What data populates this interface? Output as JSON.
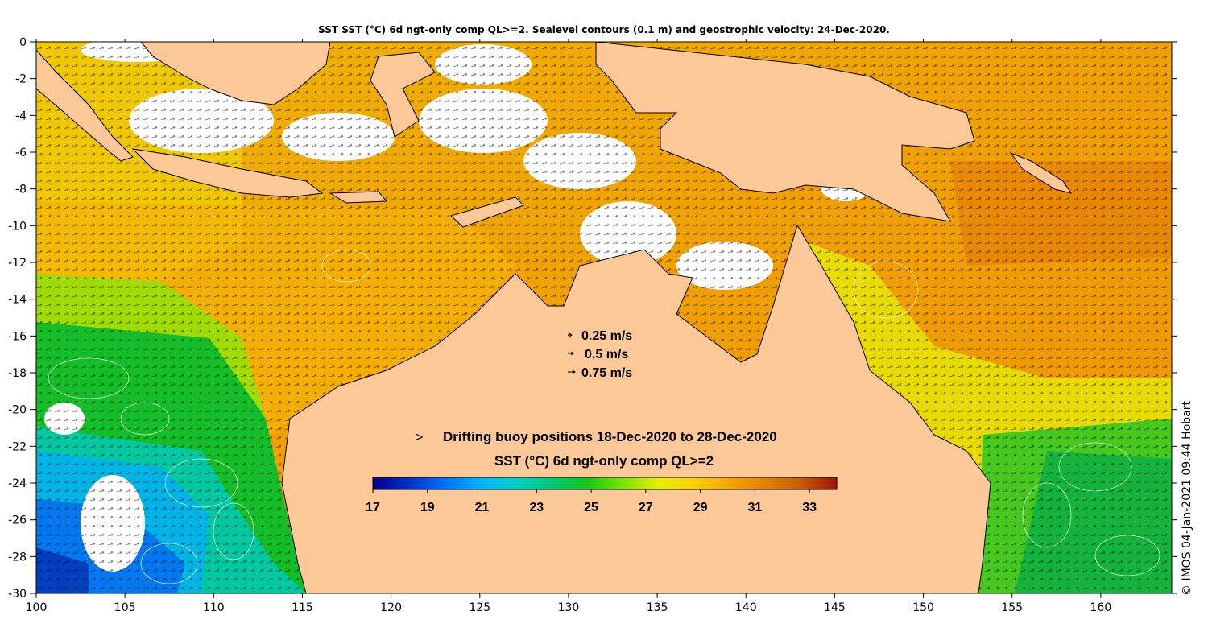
{
  "title": "SST SST (°C) 6d ngt-only comp QL>=2. Sealevel contours (0.1 m) and geostrophic velocity: 24-Dec-2020.",
  "colors": {
    "land": "#fcc898",
    "cloud": "#ffffff",
    "coast": "#000000",
    "arrow": "#000000",
    "contour": "#ffffff",
    "buoy_marker": "#ff00ff"
  },
  "chart_data": {
    "type": "heatmap",
    "x_axis": {
      "range": [
        100,
        164
      ],
      "ticks": [
        100,
        105,
        110,
        115,
        120,
        125,
        130,
        135,
        140,
        145,
        150,
        155,
        160
      ],
      "tick_labels": [
        "100",
        "105",
        "110",
        "115",
        "120",
        "125",
        "130",
        "135",
        "140",
        "145",
        "150",
        "155",
        "160"
      ]
    },
    "y_axis": {
      "range": [
        -30,
        0
      ],
      "ticks": [
        0,
        -2,
        -4,
        -6,
        -8,
        -10,
        -12,
        -14,
        -16,
        -18,
        -20,
        -22,
        -24,
        -26,
        -28,
        -30
      ],
      "tick_labels": [
        "0",
        "-2",
        "-4",
        "-6",
        "-8",
        "-10",
        "-12",
        "-14",
        "-16",
        "-18",
        "-20",
        "-22",
        "-24",
        "-26",
        "-28",
        "-30"
      ]
    },
    "velocity_scale": [
      {
        "label": "0.25 m/s",
        "speed": 0.25
      },
      {
        "label": "0.5 m/s",
        "speed": 0.5
      },
      {
        "label": "0.75 m/s",
        "speed": 0.75
      }
    ],
    "colorbar": {
      "label": "SST (°C) 6d ngt-only comp QL>=2",
      "range": [
        17,
        34
      ],
      "ticks": [
        17,
        19,
        21,
        23,
        25,
        27,
        29,
        31,
        33
      ],
      "tick_labels": [
        "17",
        "19",
        "21",
        "23",
        "25",
        "27",
        "29",
        "31",
        "33"
      ],
      "colors": [
        "#00008b",
        "#0030c8",
        "#0070ff",
        "#00b4ff",
        "#00d2c8",
        "#00c878",
        "#14c814",
        "#78e600",
        "#e6f000",
        "#fad200",
        "#f5a500",
        "#e68200",
        "#c85a00",
        "#a01400"
      ]
    }
  },
  "buoy_legend": {
    "marker": ">",
    "label": "Drifting buoy positions 18-Dec-2020 to 28-Dec-2020"
  },
  "credit": "© IMOS 04-Jan-2021 09:44 Hobart"
}
